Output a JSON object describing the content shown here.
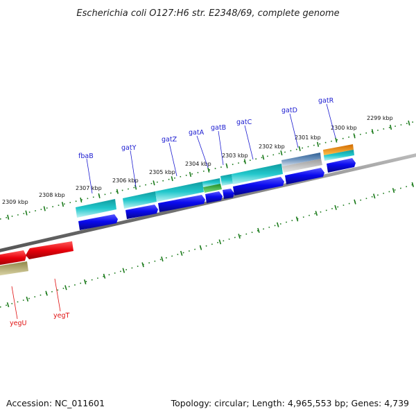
{
  "title": "Escherichia coli O127:H6 str. E2348/69, complete genome",
  "footer": {
    "accession": "Accession: NC_011601",
    "topology": "Topology: circular; Length: 4,965,553 bp; Genes: 4,739"
  },
  "ruler_labels": [
    "2299 kbp",
    "2300 kbp",
    "2301 kbp",
    "2302 kbp",
    "2303 kbp",
    "2304 kbp",
    "2305 kbp",
    "2306 kbp",
    "2307 kbp",
    "2308 kbp",
    "2309 kbp"
  ],
  "gene_labels_top": [
    "gatR",
    "gatD",
    "gatC",
    "gatB",
    "gatA",
    "gatZ",
    "gatY",
    "fbaB"
  ],
  "gene_labels_bottom": [
    "yegT",
    "yegU"
  ],
  "colors": {
    "blue": "#0a0aee",
    "cyan": "#22c8cc",
    "green": "#44c24a",
    "steel": "#5a84b0",
    "orange": "#f2900c",
    "red": "#e8000a",
    "olive": "#b8ae6c",
    "backbone": "#888888",
    "ruler": "#1a7a1a"
  }
}
